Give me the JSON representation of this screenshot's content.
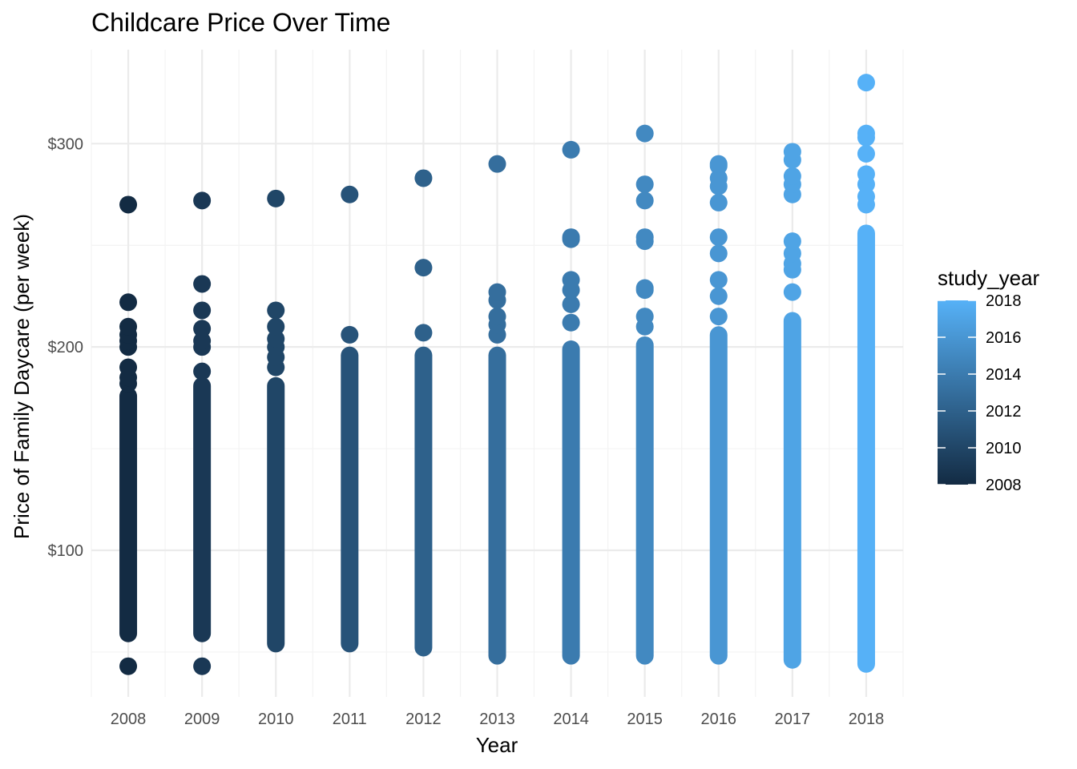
{
  "chart_data": {
    "type": "scatter",
    "title": "Childcare Price Over Time",
    "xlabel": "Year",
    "ylabel": "Price of Family Daycare (per week)",
    "x_categories": [
      "2008",
      "2009",
      "2010",
      "2011",
      "2012",
      "2013",
      "2014",
      "2015",
      "2016",
      "2017",
      "2018"
    ],
    "y_ticks": [
      {
        "value": 100,
        "label": "$100"
      },
      {
        "value": 200,
        "label": "$200"
      },
      {
        "value": 300,
        "label": "$300"
      }
    ],
    "ylim": [
      27,
      340
    ],
    "grid": true,
    "legend": {
      "title": "study_year",
      "position": "right",
      "type": "colorbar",
      "range": [
        2008,
        2018
      ],
      "ticks": [
        {
          "value": 2018,
          "label": "2018"
        },
        {
          "value": 2016,
          "label": "2016"
        },
        {
          "value": 2014,
          "label": "2014"
        },
        {
          "value": 2012,
          "label": "2012"
        },
        {
          "value": 2010,
          "label": "2010"
        },
        {
          "value": 2008,
          "label": "2008"
        }
      ],
      "color_low": "#132B43",
      "color_high": "#56B1F7"
    },
    "series": [
      {
        "x": "2008",
        "band": [
          55,
          180
        ],
        "points": [
          43,
          182,
          185,
          190,
          200,
          203,
          206,
          210,
          222,
          270
        ]
      },
      {
        "x": "2009",
        "band": [
          55,
          185
        ],
        "points": [
          43,
          188,
          200,
          203,
          209,
          218,
          231,
          272
        ]
      },
      {
        "x": "2010",
        "band": [
          50,
          185
        ],
        "points": [
          190,
          195,
          200,
          204,
          210,
          218,
          273
        ]
      },
      {
        "x": "2011",
        "band": [
          50,
          200
        ],
        "points": [
          206,
          275
        ]
      },
      {
        "x": "2012",
        "band": [
          48,
          200
        ],
        "points": [
          207,
          239,
          283
        ]
      },
      {
        "x": "2013",
        "band": [
          44,
          200
        ],
        "points": [
          206,
          211,
          215,
          223,
          227,
          290
        ]
      },
      {
        "x": "2014",
        "band": [
          44,
          203
        ],
        "points": [
          212,
          221,
          228,
          233,
          253,
          254,
          297
        ]
      },
      {
        "x": "2015",
        "band": [
          44,
          205
        ],
        "points": [
          210,
          215,
          228,
          229,
          252,
          254,
          272,
          280,
          305
        ]
      },
      {
        "x": "2016",
        "band": [
          44,
          210
        ],
        "points": [
          215,
          225,
          233,
          246,
          254,
          271,
          279,
          283,
          289,
          290
        ]
      },
      {
        "x": "2017",
        "band": [
          42,
          217
        ],
        "points": [
          227,
          238,
          241,
          246,
          252,
          275,
          280,
          284,
          292,
          296
        ]
      },
      {
        "x": "2018",
        "band": [
          40,
          260
        ],
        "points": [
          270,
          274,
          280,
          285,
          295,
          303,
          305,
          330
        ]
      }
    ],
    "colors": {
      "background": "#ffffff",
      "grid_major": "#ebebeb",
      "grid_minor": "#f3f3f3"
    }
  }
}
